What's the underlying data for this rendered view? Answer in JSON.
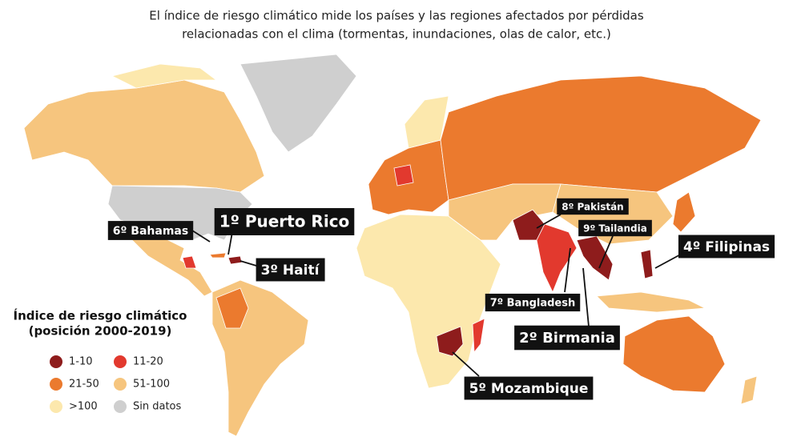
{
  "subtitle": [
    "El índice de riesgo climático mide los países y las regiones afectados por pérdidas",
    "relacionadas con el clima (tormentas, inundaciones, olas de calor, etc.)"
  ],
  "legend": {
    "title": [
      "Índice de riesgo climático",
      "(posición 2000-2019)"
    ],
    "items": [
      {
        "label": "1-10",
        "color": "#8e1c1c"
      },
      {
        "label": "11-20",
        "color": "#e2392e"
      },
      {
        "label": "21-50",
        "color": "#eb7a2e"
      },
      {
        "label": "51-100",
        "color": "#f6c57e"
      },
      {
        "label": ">100",
        "color": "#fce8ad"
      },
      {
        "label": "Sin datos",
        "color": "#cfcfcf"
      }
    ]
  },
  "labels": [
    "6º Bahamas",
    "1º Puerto Rico",
    "3º Haití",
    "8º Pakistán",
    "9º Tailandia",
    "4º Filipinas",
    "7º Bangladesh",
    "2º Birmania",
    "5º Mozambique"
  ]
}
